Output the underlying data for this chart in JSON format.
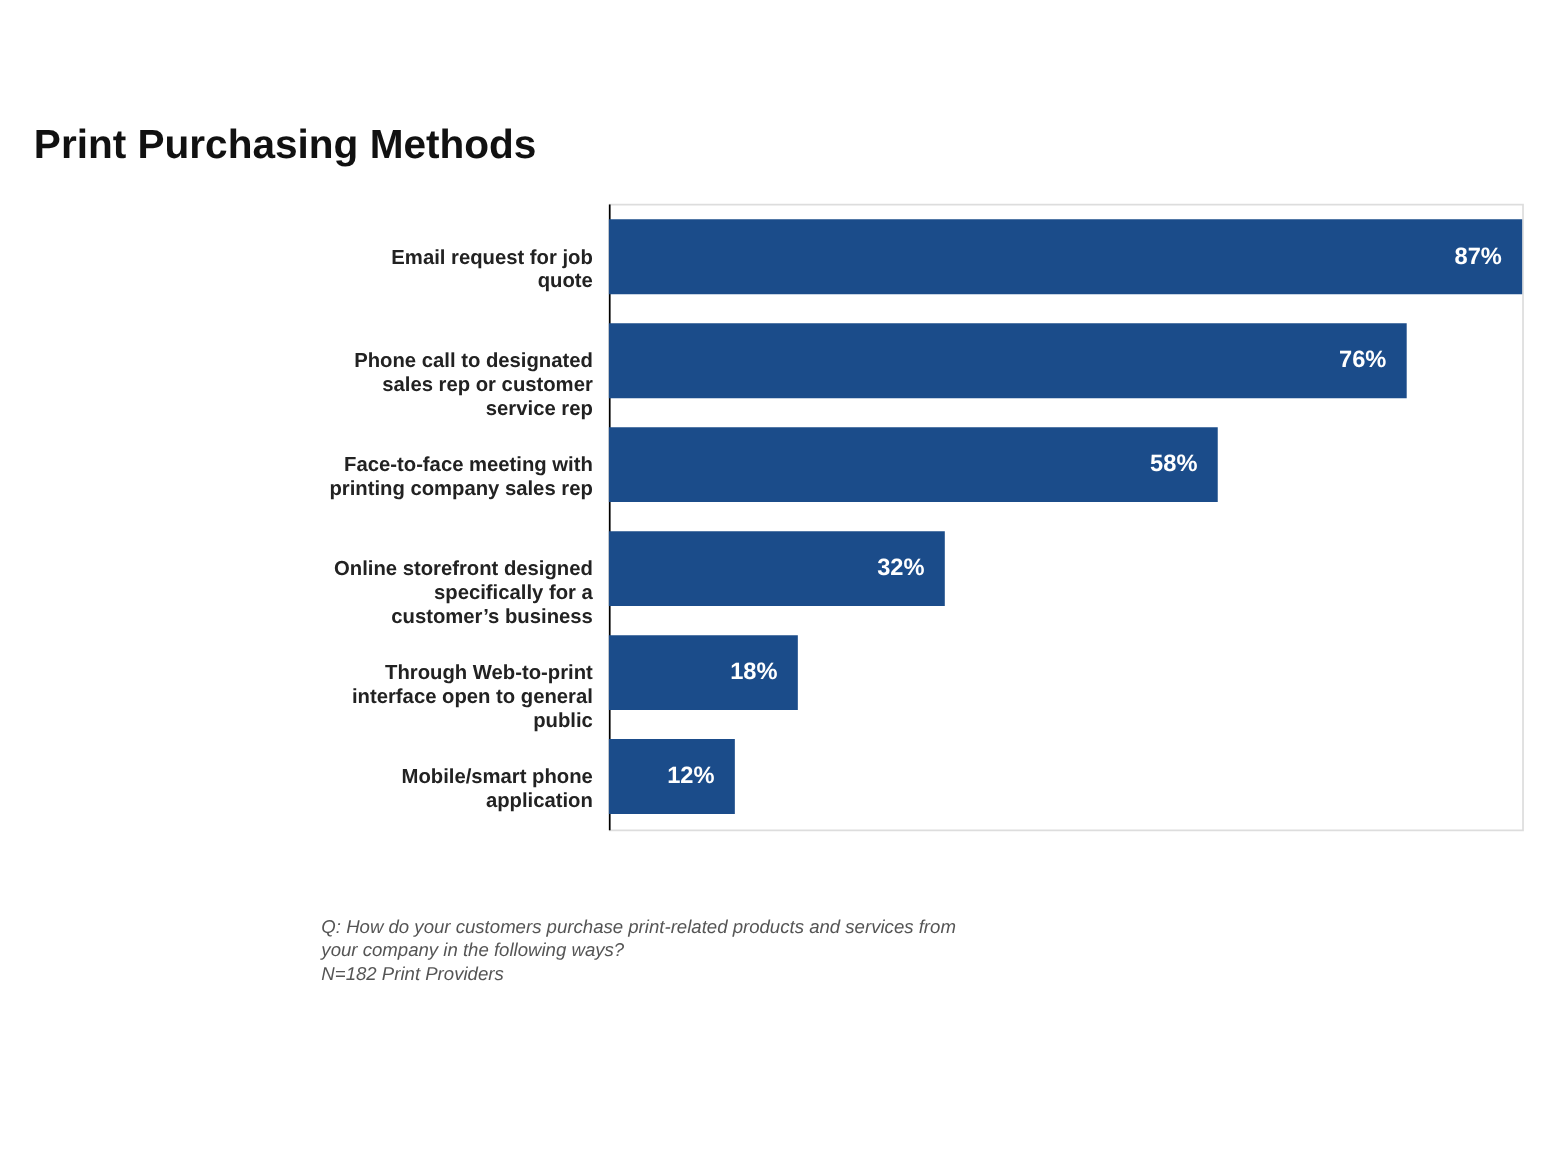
{
  "chart_data": {
    "type": "bar",
    "orientation": "horizontal",
    "title": "Print Purchasing Methods",
    "categories": [
      "Email request for job quote",
      "Phone call to designated sales rep or customer service rep",
      "Face-to-face meeting with printing company sales rep",
      "Online storefront designed specifically for a customer’s business",
      "Through Web-to-print interface open to general public",
      "Mobile/smart phone application"
    ],
    "values": [
      87,
      76,
      58,
      32,
      18,
      12
    ],
    "value_labels": [
      "87%",
      "76%",
      "58%",
      "32%",
      "18%",
      "12%"
    ],
    "color": "#1b4c8a",
    "grid": false,
    "annotations": [
      "Q: How do your customers purchase print-related products and services from your company in the following ways?",
      "N=182 Print Providers"
    ]
  }
}
